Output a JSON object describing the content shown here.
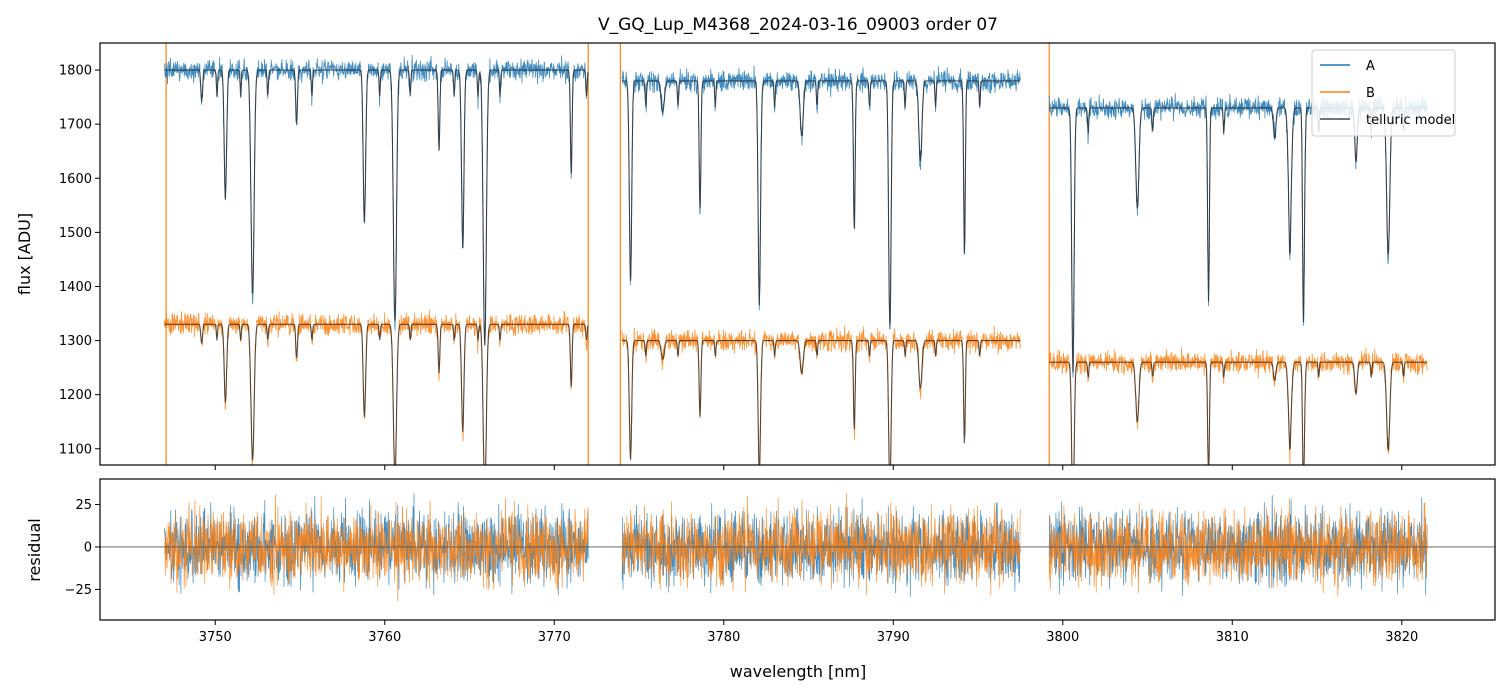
{
  "chart_data": [
    {
      "type": "line",
      "panel": "spectrum",
      "title": "V_GQ_Lup_M4368_2024-03-16_09003  order 07",
      "xlabel": "",
      "ylabel": "flux [ADU]",
      "xlim": [
        3743.2,
        3825.5
      ],
      "ylim": [
        1070,
        1850
      ],
      "x_ticks": [
        3750,
        3760,
        3770,
        3780,
        3790,
        3800,
        3810,
        3820
      ],
      "y_ticks": [
        1100,
        1200,
        1300,
        1400,
        1500,
        1600,
        1700,
        1800
      ],
      "y_tick_labels": [
        "1100",
        "1200",
        "1300",
        "1400",
        "1500",
        "1600",
        "1700",
        "1800"
      ],
      "grid": false,
      "legend": {
        "position": "top-right",
        "entries": [
          {
            "label": "A",
            "color": "#1f77b4"
          },
          {
            "label": "B",
            "color": "#ff7f0e"
          },
          {
            "label": "telluric model",
            "color": "#444444"
          }
        ]
      },
      "segments": [
        {
          "x_start": 3747.0,
          "x_end": 3772.0,
          "A_level": 1800,
          "B_level": 1330
        },
        {
          "x_start": 3774.0,
          "x_end": 3797.5,
          "A_level": 1780,
          "B_level": 1300
        },
        {
          "x_start": 3799.2,
          "x_end": 3821.5,
          "A_level": 1730,
          "B_level": 1260
        }
      ],
      "absorption_lines_x": [
        3749.2,
        3750.6,
        3752.2,
        3754.8,
        3758.8,
        3760.6,
        3763.2,
        3764.6,
        3765.9,
        3771.0,
        3774.5,
        3776.4,
        3778.6,
        3782.1,
        3784.6,
        3787.7,
        3789.8,
        3791.6,
        3794.2,
        3800.6,
        3804.4,
        3808.6,
        3812.5,
        3813.4,
        3814.2,
        3817.3,
        3819.2
      ],
      "vertical_lines": [
        {
          "x": 3747.1,
          "color": "#ff7f0e"
        },
        {
          "x": 3772.0,
          "color": "#ff7f0e"
        },
        {
          "x": 3773.9,
          "color": "#ff7f0e"
        },
        {
          "x": 3799.2,
          "color": "#ff7f0e"
        }
      ]
    },
    {
      "type": "line",
      "panel": "residual",
      "xlabel": "wavelength [nm]",
      "ylabel": "residual",
      "xlim": [
        3743.2,
        3825.5
      ],
      "ylim": [
        -43,
        40
      ],
      "x_ticks": [
        3750,
        3760,
        3770,
        3780,
        3790,
        3800,
        3810,
        3820
      ],
      "x_tick_labels": [
        "3750",
        "3760",
        "3770",
        "3780",
        "3790",
        "3800",
        "3810",
        "3820"
      ],
      "y_ticks": [
        -25,
        0,
        25
      ],
      "y_tick_labels": [
        "−25",
        "0",
        "25"
      ],
      "zero_line": 0,
      "residual_amplitude": 18
    }
  ]
}
